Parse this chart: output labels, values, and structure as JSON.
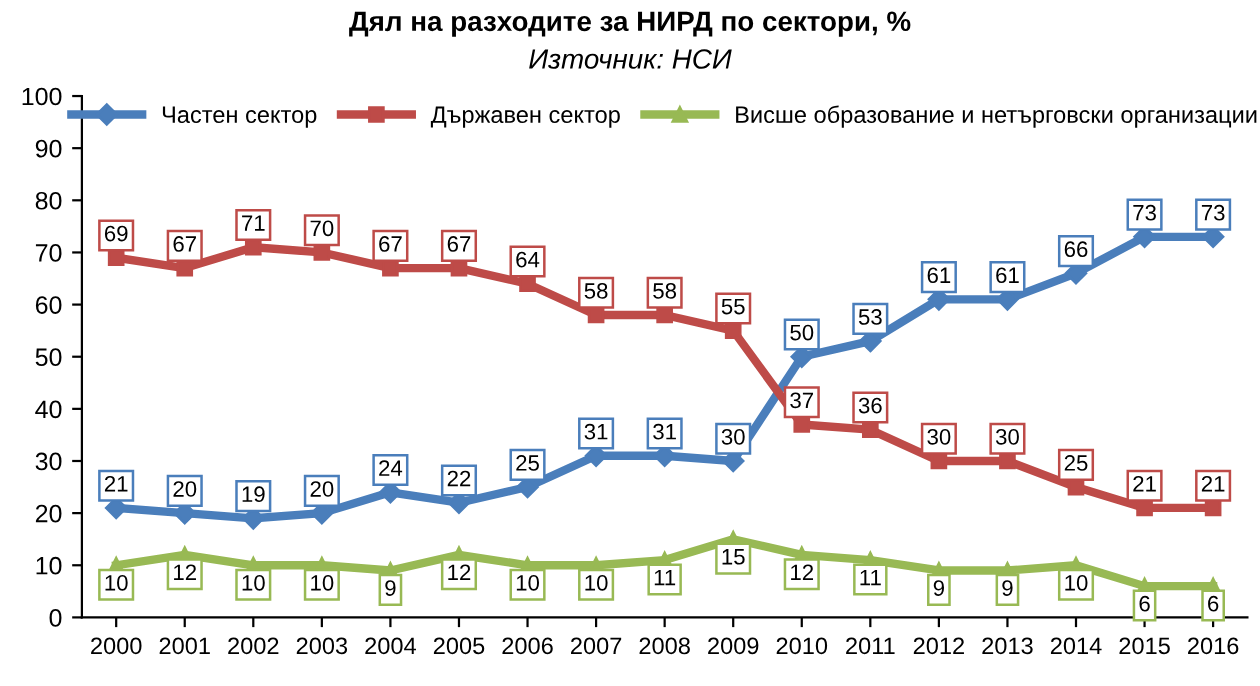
{
  "chart_data": {
    "type": "line",
    "title": "Дял на разходите за НИРД по сектори, %",
    "subtitle": "Източник: НСИ",
    "categories": [
      "2000",
      "2001",
      "2002",
      "2003",
      "2004",
      "2005",
      "2006",
      "2007",
      "2008",
      "2009",
      "2010",
      "2011",
      "2012",
      "2013",
      "2014",
      "2015",
      "2016"
    ],
    "series": [
      {
        "name": "Частен сектор",
        "color": "#4a7ebb",
        "marker": "diamond",
        "values": [
          21,
          20,
          19,
          20,
          24,
          22,
          25,
          31,
          31,
          30,
          50,
          53,
          61,
          61,
          66,
          73,
          73
        ]
      },
      {
        "name": "Държавен сектор",
        "color": "#be4b48",
        "marker": "square",
        "values": [
          69,
          67,
          71,
          70,
          67,
          67,
          64,
          58,
          58,
          55,
          37,
          36,
          30,
          30,
          25,
          21,
          21
        ]
      },
      {
        "name": "Висше образование и нетърговски организации",
        "color": "#98b954",
        "marker": "triangle",
        "values": [
          10,
          12,
          10,
          10,
          9,
          12,
          10,
          10,
          11,
          15,
          12,
          11,
          9,
          9,
          10,
          6,
          6
        ]
      }
    ],
    "ylim": [
      0,
      100
    ],
    "yticks": [
      0,
      10,
      20,
      30,
      40,
      50,
      60,
      70,
      80,
      90,
      100
    ],
    "grid": false,
    "legend": "top",
    "data_labels": true,
    "line_style": "solid"
  }
}
